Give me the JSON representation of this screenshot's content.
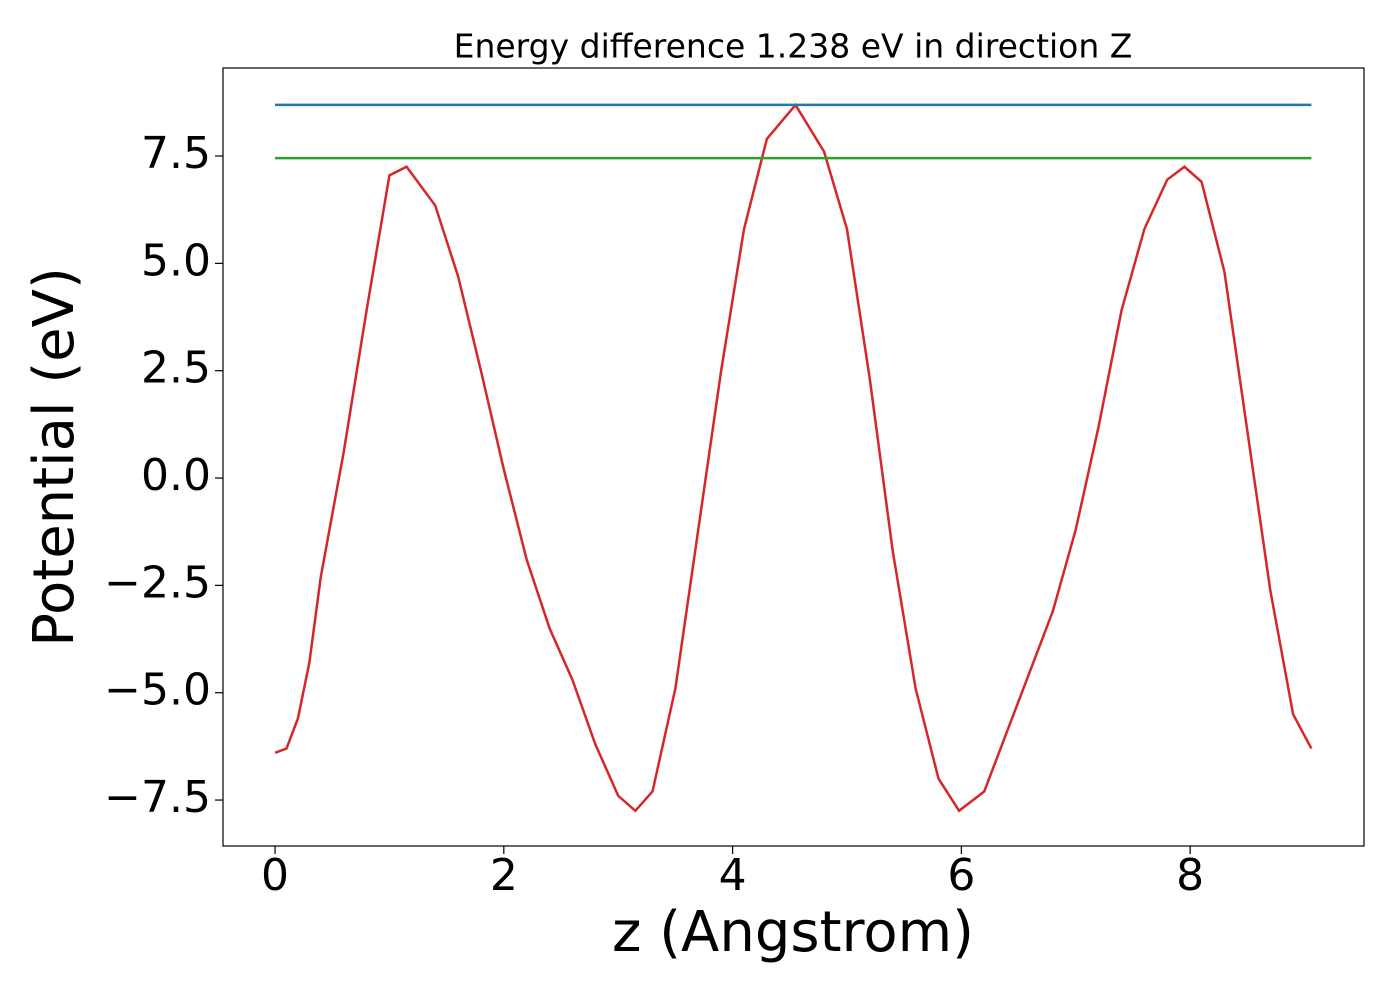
{
  "chart_data": {
    "type": "line",
    "title": "Energy difference 1.238 eV in direction Z",
    "x_label": "z (Angstrom)",
    "y_label": "Potential (eV)",
    "xlim": [
      -0.455,
      9.52
    ],
    "ylim": [
      -8.57,
      9.55
    ],
    "xticks": [
      0,
      2,
      4,
      6,
      8
    ],
    "yticks": [
      {
        "value": -7.5,
        "label": "−7.5"
      },
      {
        "value": -5,
        "label": "−5.0"
      },
      {
        "value": -2.5,
        "label": "−2.5"
      },
      {
        "value": 0,
        "label": "0.0"
      },
      {
        "value": 2.5,
        "label": "2.5"
      },
      {
        "value": 5,
        "label": "5.0"
      },
      {
        "value": 7.5,
        "label": "7.5"
      }
    ],
    "grid": false,
    "series": [
      {
        "color": "#d62728",
        "x": [
          0,
          0.1,
          0.2,
          0.3,
          0.4,
          0.6,
          0.8,
          1.0,
          1.15,
          1.4,
          1.6,
          1.8,
          2.0,
          2.2,
          2.4,
          2.6,
          2.8,
          3.0,
          3.15,
          3.3,
          3.5,
          3.7,
          3.9,
          4.1,
          4.3,
          4.55,
          4.8,
          5.0,
          5.2,
          5.4,
          5.6,
          5.8,
          5.98,
          6.2,
          6.4,
          6.6,
          6.8,
          7.0,
          7.2,
          7.4,
          7.6,
          7.8,
          7.95,
          8.1,
          8.3,
          8.5,
          8.7,
          8.9,
          9.06
        ],
        "values": [
          -6.4,
          -6.3,
          -5.6,
          -4.3,
          -2.3,
          0.6,
          3.9,
          7.05,
          7.25,
          6.35,
          4.7,
          2.5,
          0.2,
          -1.9,
          -3.5,
          -4.7,
          -6.2,
          -7.4,
          -7.75,
          -7.3,
          -4.9,
          -1.2,
          2.5,
          5.8,
          7.9,
          8.69,
          7.6,
          5.8,
          2.3,
          -1.7,
          -4.9,
          -7.0,
          -7.75,
          -7.3,
          -5.9,
          -4.5,
          -3.1,
          -1.2,
          1.2,
          3.9,
          5.8,
          6.95,
          7.25,
          6.9,
          4.8,
          1.1,
          -2.6,
          -5.5,
          -6.3
        ]
      },
      {
        "color": "#1f77b4",
        "x": [
          0,
          9.06
        ],
        "values": [
          8.69,
          8.69
        ]
      },
      {
        "color": "#2ca02c",
        "x": [
          0,
          9.06
        ],
        "values": [
          7.45,
          7.45
        ]
      }
    ]
  }
}
